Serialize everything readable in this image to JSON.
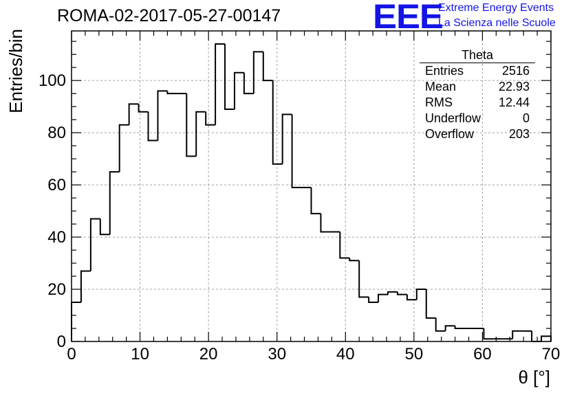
{
  "title": "ROMA-02-2017-05-27-00147",
  "logo": {
    "mark": "EEE",
    "line1": "Extreme Energy Events",
    "line2": "La Scienza nelle Scuole"
  },
  "stats_box": {
    "title": "Theta",
    "rows": [
      {
        "label": "Entries",
        "value": "2516"
      },
      {
        "label": "Mean",
        "value": "22.93"
      },
      {
        "label": "RMS",
        "value": "12.44"
      },
      {
        "label": "Underflow",
        "value": "0"
      },
      {
        "label": "Overflow",
        "value": "203"
      }
    ]
  },
  "colors": {
    "line": "#000000",
    "grid": "#a0a0a0",
    "accent": "#1414e6"
  },
  "chart_data": {
    "type": "histogram",
    "bin_width": 1.4,
    "x_start": 0,
    "values": [
      15,
      27,
      47,
      41,
      65,
      83,
      91,
      88,
      77,
      96,
      95,
      95,
      71,
      88,
      83,
      114,
      89,
      103,
      95,
      111,
      100,
      68,
      87,
      59,
      59,
      49,
      42,
      42,
      32,
      31,
      17,
      15,
      18,
      19,
      18,
      16,
      20,
      9,
      4,
      6,
      5,
      5,
      5,
      1,
      1,
      1,
      4,
      4,
      0,
      2
    ],
    "xlabel": "θ [°]",
    "ylabel": "Entries/bin",
    "xlim": [
      0,
      70
    ],
    "ylim": [
      0,
      119
    ],
    "xticks": [
      0,
      10,
      20,
      30,
      40,
      50,
      60,
      70
    ],
    "xtick_labels": [
      "0",
      "10",
      "20",
      "30",
      "40",
      "50",
      "60",
      "70"
    ],
    "yticks": [
      0,
      20,
      40,
      60,
      80,
      100
    ],
    "ytick_labels": [
      "0",
      "20",
      "40",
      "60",
      "80",
      "100"
    ],
    "grid": true,
    "legend": "top-right"
  }
}
